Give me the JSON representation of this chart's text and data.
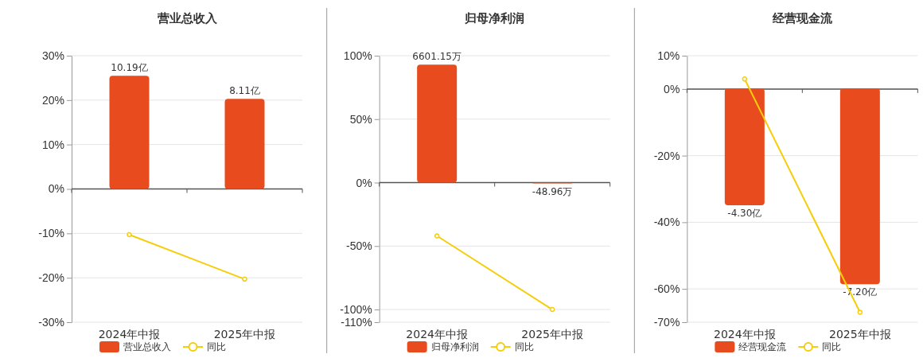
{
  "chart_data": [
    {
      "type": "bar",
      "title": "营业总收入",
      "categories": [
        "2024年中报",
        "2025年中报"
      ],
      "series": [
        {
          "name": "营业总收入",
          "color": "#e84c1e",
          "axis": "y2",
          "values": [
            10.19,
            8.11
          ],
          "value_labels": [
            "10.19亿",
            "8.11亿"
          ]
        },
        {
          "name": "同比",
          "type": "line",
          "color": "#f5cd0a",
          "values": [
            -10.3,
            -20.3
          ]
        }
      ],
      "ylim": [
        -30,
        30
      ],
      "yticks": [
        {
          "value": 30,
          "label": "30%"
        },
        {
          "value": 20,
          "label": "20%"
        },
        {
          "value": 10,
          "label": "10%"
        },
        {
          "value": 0,
          "label": "0%"
        },
        {
          "value": -10,
          "label": "-10%"
        },
        {
          "value": -20,
          "label": "-20%"
        },
        {
          "value": -30,
          "label": "-30%"
        }
      ],
      "y2lim": [
        -12,
        12
      ],
      "grid": "y",
      "legend": "bottom",
      "marker": "circle"
    },
    {
      "type": "bar",
      "title": "归母净利润",
      "categories": [
        "2024年中报",
        "2025年中报"
      ],
      "series": [
        {
          "name": "归母净利润",
          "color": "#e84c1e",
          "axis": "y2",
          "values": [
            6601.15,
            -48.96
          ],
          "value_labels": [
            "6601.15万",
            "-48.96万"
          ]
        },
        {
          "name": "同比",
          "type": "line",
          "color": "#f5cd0a",
          "values": [
            -42,
            -100
          ]
        }
      ],
      "ylim": [
        -110,
        100
      ],
      "yticks": [
        {
          "value": 100,
          "label": "100%"
        },
        {
          "value": 50,
          "label": "50%"
        },
        {
          "value": 0,
          "label": "0%"
        },
        {
          "value": -50,
          "label": "-50%"
        },
        {
          "value": -100,
          "label": "-100%"
        },
        {
          "value": -110,
          "label": "-110%"
        }
      ],
      "y2lim": [
        -7810,
        7100
      ],
      "grid": "y",
      "legend": "bottom",
      "marker": "circle"
    },
    {
      "type": "bar",
      "title": "经营现金流",
      "categories": [
        "2024年中报",
        "2025年中报"
      ],
      "series": [
        {
          "name": "经营现金流",
          "color": "#e84c1e",
          "axis": "y2",
          "values": [
            -4.3,
            -7.2
          ],
          "value_labels": [
            "-4.30亿",
            "-7.20亿"
          ]
        },
        {
          "name": "同比",
          "type": "line",
          "color": "#f5cd0a",
          "values": [
            3,
            -67
          ]
        }
      ],
      "ylim": [
        -70,
        10
      ],
      "yticks": [
        {
          "value": 10,
          "label": "10%"
        },
        {
          "value": 0,
          "label": "0%"
        },
        {
          "value": -20,
          "label": "-20%"
        },
        {
          "value": -40,
          "label": "-40%"
        },
        {
          "value": -60,
          "label": "-60%"
        },
        {
          "value": -70,
          "label": "-70%"
        }
      ],
      "y2lim": [
        -8.6,
        1.2
      ],
      "grid": "y",
      "legend": "bottom",
      "marker": "circle"
    }
  ]
}
